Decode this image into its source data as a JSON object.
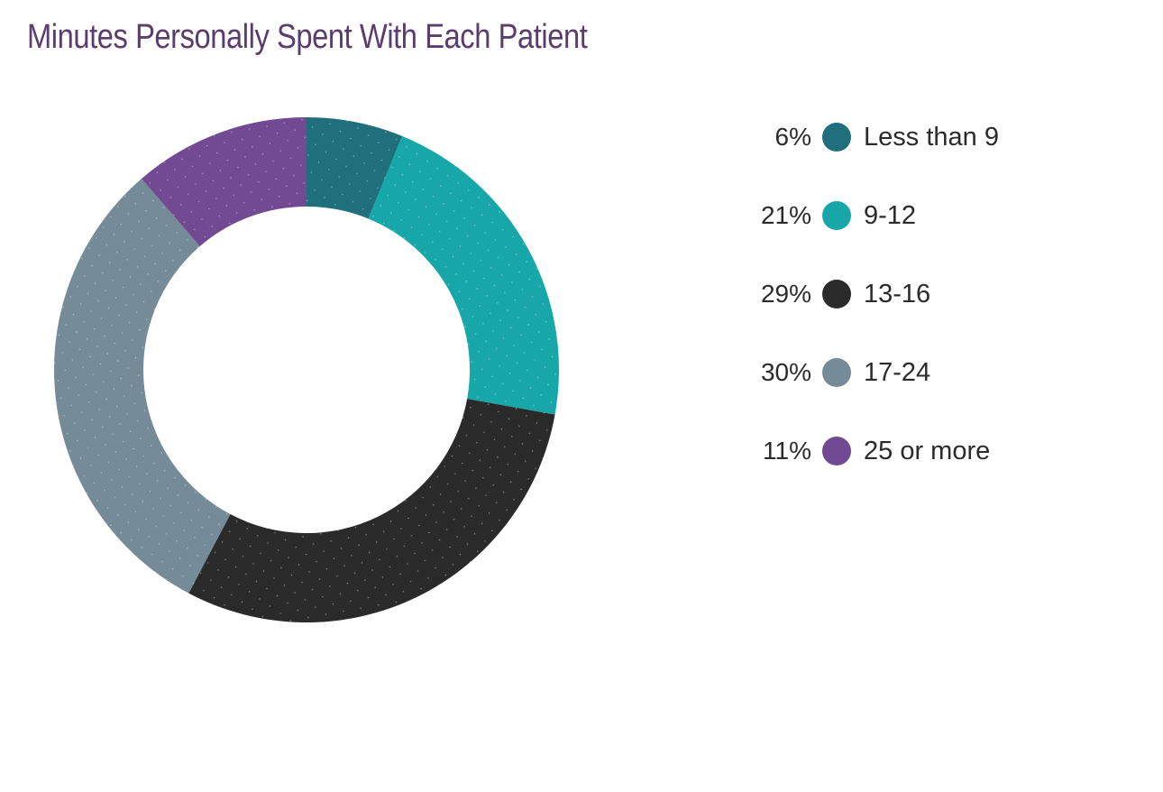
{
  "title": "Minutes Personally Spent With Each Patient",
  "chart_data": {
    "type": "pie",
    "variant": "donut",
    "title": "Minutes Personally Spent With Each Patient",
    "categories": [
      "Less than 9",
      "9-12",
      "13-16",
      "17-24",
      "25 or more"
    ],
    "values": [
      6,
      21,
      29,
      30,
      11
    ],
    "value_labels": [
      "6%",
      "21%",
      "29%",
      "30%",
      "11%"
    ],
    "colors": [
      "#1f6f7d",
      "#17a7a8",
      "#2a2a2a",
      "#758c98",
      "#724a94"
    ],
    "legend_position": "right"
  }
}
